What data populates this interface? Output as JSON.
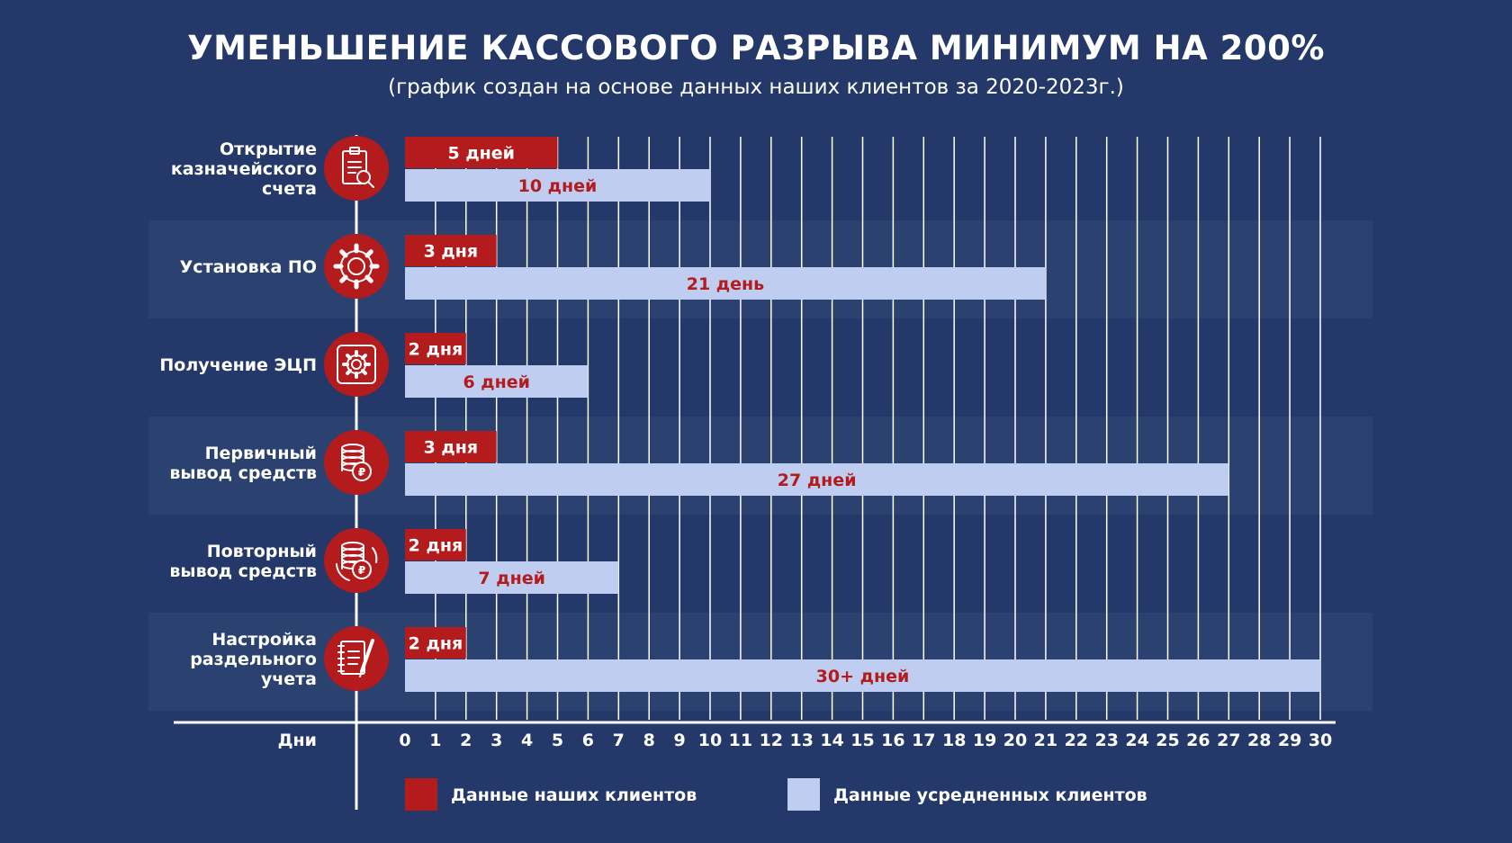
{
  "header": {
    "title": "УМЕНЬШЕНИЕ КАССОВОГО РАЗРЫВА МИНИМУМ НА 200%",
    "subtitle": "(график создан на основе данных наших клиентов за 2020-2023г.)"
  },
  "chart_data": {
    "type": "bar",
    "orientation": "horizontal",
    "title": "УМЕНЬШЕНИЕ КАССОВОГО РАЗРЫВА МИНИМУМ НА 200%",
    "xlabel": "Дни",
    "ylabel": "",
    "xlim": [
      0,
      30
    ],
    "x_ticks": [
      0,
      1,
      2,
      3,
      4,
      5,
      6,
      7,
      8,
      9,
      10,
      11,
      12,
      13,
      14,
      15,
      16,
      17,
      18,
      19,
      20,
      21,
      22,
      23,
      24,
      25,
      26,
      27,
      28,
      29,
      30
    ],
    "grid": true,
    "legend_position": "bottom",
    "categories": [
      {
        "label": "Открытие\nказначейского\nсчета",
        "icon": "document-search-icon"
      },
      {
        "label": "Установка ПО",
        "icon": "gear-icon"
      },
      {
        "label": "Получение ЭЦП",
        "icon": "gear-box-icon"
      },
      {
        "label": "Первичный\nвывод средств",
        "icon": "coins-icon"
      },
      {
        "label": "Повторный\nвывод средств",
        "icon": "coins-cycle-icon"
      },
      {
        "label": "Настройка\nраздельного\nучета",
        "icon": "notebook-pen-icon"
      }
    ],
    "series": [
      {
        "name": "Данные наших клиентов",
        "color": "#b31b1d",
        "label_color": "#ffffff",
        "values": [
          5,
          3,
          2,
          3,
          2,
          2
        ],
        "labels": [
          "5 дней",
          "3 дня",
          "2 дня",
          "3 дня",
          "2 дня",
          "2 дня"
        ]
      },
      {
        "name": "Данные усредненных клиентов",
        "color": "#bfcdf0",
        "label_color": "#b31b1d",
        "values": [
          10,
          21,
          6,
          27,
          7,
          30
        ],
        "labels": [
          "10 дней",
          "21 день",
          "6 дней",
          "27 дней",
          "7 дней",
          "30+ дней"
        ]
      }
    ]
  },
  "colors": {
    "background": "#24396a",
    "band": "#2b416f",
    "accent_red": "#b31b1d",
    "light_blue": "#bfcdf0",
    "white": "#ffffff"
  }
}
